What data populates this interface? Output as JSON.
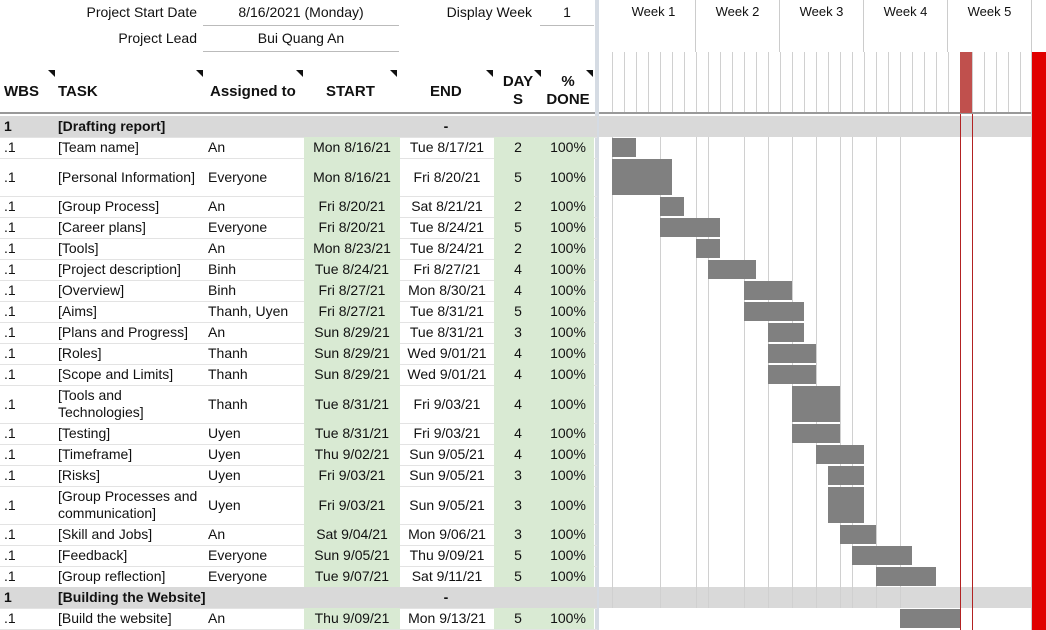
{
  "project": {
    "start_label": "Project Start Date",
    "start_value": "8/16/2021 (Monday)",
    "lead_label": "Project Lead",
    "lead_value": "Bui Quang An",
    "display_week_label": "Display Week",
    "display_week_value": "1"
  },
  "columns": {
    "wbs": "WBS",
    "task": "TASK",
    "assigned": "Assigned to",
    "start": "START",
    "end": "END",
    "days_line1": "DAY",
    "days_line2": "S",
    "done_line1": "%",
    "done_line2": "DONE"
  },
  "weeks": [
    "Week 1",
    "Week 2",
    "Week 3",
    "Week 4",
    "Week 5"
  ],
  "colors": {
    "green": "#d9ead3",
    "section": "#d9d9d9",
    "bar": "#808080",
    "today": "#e00000"
  },
  "rows": [
    {
      "type": "section",
      "wbs": "1",
      "task": "[Drafting report]",
      "dash": "-"
    },
    {
      "type": "task",
      "wbs": ".1",
      "task": "[Team name]",
      "assigned": "An",
      "start": "Mon 8/16/21",
      "end": "Tue 8/17/21",
      "days": "2",
      "done": "100%",
      "offset": 0,
      "dur": 2
    },
    {
      "type": "task",
      "wbs": ".1",
      "task": "[Personal Information]",
      "assigned": "Everyone",
      "start": "Mon 8/16/21",
      "end": "Fri 8/20/21",
      "days": "5",
      "done": "100%",
      "offset": 0,
      "dur": 5,
      "tall": true
    },
    {
      "type": "task",
      "wbs": ".1",
      "task": "[Group Process]",
      "assigned": "An",
      "start": "Fri 8/20/21",
      "end": "Sat 8/21/21",
      "days": "2",
      "done": "100%",
      "offset": 4,
      "dur": 2
    },
    {
      "type": "task",
      "wbs": ".1",
      "task": "[Career plans]",
      "assigned": "Everyone",
      "start": "Fri 8/20/21",
      "end": "Tue 8/24/21",
      "days": "5",
      "done": "100%",
      "offset": 4,
      "dur": 5
    },
    {
      "type": "task",
      "wbs": ".1",
      "task": "[Tools]",
      "assigned": "An",
      "start": "Mon 8/23/21",
      "end": "Tue 8/24/21",
      "days": "2",
      "done": "100%",
      "offset": 7,
      "dur": 2
    },
    {
      "type": "task",
      "wbs": ".1",
      "task": "[Project description]",
      "assigned": "Binh",
      "start": "Tue 8/24/21",
      "end": "Fri 8/27/21",
      "days": "4",
      "done": "100%",
      "offset": 8,
      "dur": 4
    },
    {
      "type": "task",
      "wbs": ".1",
      "task": "[Overview]",
      "assigned": "Binh",
      "start": "Fri 8/27/21",
      "end": "Mon 8/30/21",
      "days": "4",
      "done": "100%",
      "offset": 11,
      "dur": 4
    },
    {
      "type": "task",
      "wbs": ".1",
      "task": "[Aims]",
      "assigned": "Thanh, Uyen",
      "start": "Fri 8/27/21",
      "end": "Tue 8/31/21",
      "days": "5",
      "done": "100%",
      "offset": 11,
      "dur": 5
    },
    {
      "type": "task",
      "wbs": ".1",
      "task": "[Plans and Progress]",
      "assigned": "An",
      "start": "Sun 8/29/21",
      "end": "Tue 8/31/21",
      "days": "3",
      "done": "100%",
      "offset": 13,
      "dur": 3
    },
    {
      "type": "task",
      "wbs": ".1",
      "task": "[Roles]",
      "assigned": "Thanh",
      "start": "Sun 8/29/21",
      "end": "Wed 9/01/21",
      "days": "4",
      "done": "100%",
      "offset": 13,
      "dur": 4
    },
    {
      "type": "task",
      "wbs": ".1",
      "task": "[Scope and Limits]",
      "assigned": "Thanh",
      "start": "Sun 8/29/21",
      "end": "Wed 9/01/21",
      "days": "4",
      "done": "100%",
      "offset": 13,
      "dur": 4
    },
    {
      "type": "task",
      "wbs": ".1",
      "task": "[Tools and Technologies]",
      "assigned": "Thanh",
      "start": "Tue 8/31/21",
      "end": "Fri 9/03/21",
      "days": "4",
      "done": "100%",
      "offset": 15,
      "dur": 4,
      "tall": true
    },
    {
      "type": "task",
      "wbs": ".1",
      "task": "[Testing]",
      "assigned": "Uyen",
      "start": "Tue 8/31/21",
      "end": "Fri 9/03/21",
      "days": "4",
      "done": "100%",
      "offset": 15,
      "dur": 4
    },
    {
      "type": "task",
      "wbs": ".1",
      "task": "[Timeframe]",
      "assigned": "Uyen",
      "start": "Thu 9/02/21",
      "end": "Sun 9/05/21",
      "days": "4",
      "done": "100%",
      "offset": 17,
      "dur": 4
    },
    {
      "type": "task",
      "wbs": ".1",
      "task": "[Risks]",
      "assigned": "Uyen",
      "start": "Fri 9/03/21",
      "end": "Sun 9/05/21",
      "days": "3",
      "done": "100%",
      "offset": 18,
      "dur": 3
    },
    {
      "type": "task",
      "wbs": ".1",
      "task": "[Group Processes and communication]",
      "assigned": "Uyen",
      "start": "Fri 9/03/21",
      "end": "Sun 9/05/21",
      "days": "3",
      "done": "100%",
      "offset": 18,
      "dur": 3,
      "tall": true
    },
    {
      "type": "task",
      "wbs": ".1",
      "task": "[Skill and Jobs]",
      "assigned": "An",
      "start": "Sat 9/04/21",
      "end": "Mon 9/06/21",
      "days": "3",
      "done": "100%",
      "offset": 19,
      "dur": 3
    },
    {
      "type": "task",
      "wbs": ".1",
      "task": "[Feedback]",
      "assigned": "Everyone",
      "start": "Sun 9/05/21",
      "end": "Thu 9/09/21",
      "days": "5",
      "done": "100%",
      "offset": 20,
      "dur": 5
    },
    {
      "type": "task",
      "wbs": ".1",
      "task": "[Group reflection]",
      "assigned": "Everyone",
      "start": "Tue 9/07/21",
      "end": "Sat 9/11/21",
      "days": "5",
      "done": "100%",
      "offset": 22,
      "dur": 5
    },
    {
      "type": "section",
      "wbs": "1",
      "task": "[Building the Website]",
      "dash": "-"
    },
    {
      "type": "task",
      "wbs": ".1",
      "task": "[Build the website]",
      "assigned": "An",
      "start": "Thu 9/09/21",
      "end": "Mon 9/13/21",
      "days": "5",
      "done": "100%",
      "offset": 24,
      "dur": 5
    }
  ]
}
